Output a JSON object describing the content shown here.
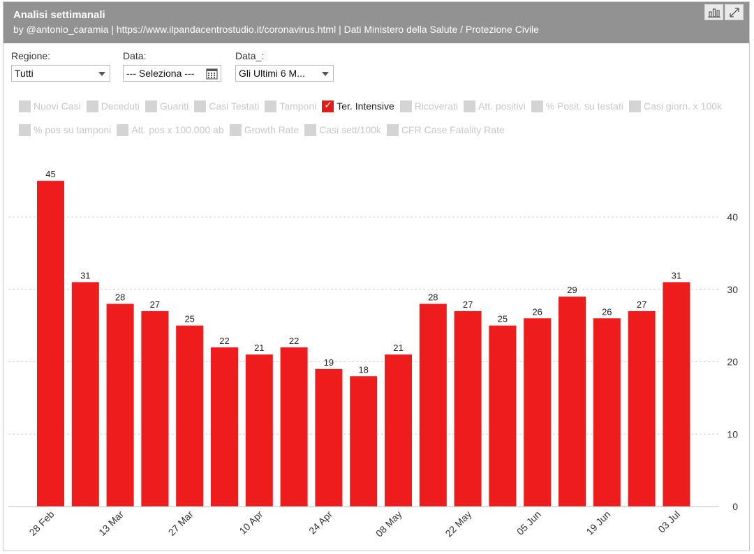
{
  "header": {
    "title": "Analisi settimanali",
    "subtitle": "by @antonio_caramia | https://www.ilpandacentrostudio.it/coronavirus.html | Dati Ministero della Salute / Protezione Civile"
  },
  "filters": {
    "regione": {
      "label": "Regione:",
      "value": "Tutti"
    },
    "data": {
      "label": "Data:",
      "value": "--- Seleziona ---"
    },
    "data2": {
      "label": "Data_:",
      "value": "Gli Ultimi 6 M..."
    }
  },
  "legend": [
    {
      "label": "Nuovi Casi",
      "checked": false
    },
    {
      "label": "Deceduti",
      "checked": false
    },
    {
      "label": "Guariti",
      "checked": false
    },
    {
      "label": "Casi Testati",
      "checked": false
    },
    {
      "label": "Tamponi",
      "checked": false
    },
    {
      "label": "Ter. Intensive",
      "checked": true
    },
    {
      "label": "Ricoverati",
      "checked": false
    },
    {
      "label": "Att. positivi",
      "checked": false
    },
    {
      "label": "% Posit. su testati",
      "checked": false
    },
    {
      "label": "Casi giorn. x 100k",
      "checked": false
    },
    {
      "label": "% pos su tamponi",
      "checked": false
    },
    {
      "label": "Att. pos x 100.000 ab",
      "checked": false
    },
    {
      "label": "Growth Rate",
      "checked": false
    },
    {
      "label": "Casi sett/100k",
      "checked": false
    },
    {
      "label": "CFR Case Fatality Rate",
      "checked": false
    }
  ],
  "colors": {
    "bar": "#ee1c1c",
    "header": "#929292",
    "checked": "#e31b1b"
  },
  "chart_data": {
    "type": "bar",
    "categories": [
      "28 Feb",
      "",
      "13 Mar",
      "",
      "27 Mar",
      "",
      "10 Apr",
      "",
      "24 Apr",
      "",
      "08 May",
      "",
      "22 May",
      "",
      "05 Jun",
      "",
      "19 Jun",
      "",
      "03 Jul"
    ],
    "values": [
      45,
      31,
      28,
      27,
      25,
      22,
      21,
      22,
      19,
      18,
      21,
      28,
      27,
      25,
      26,
      29,
      26,
      27,
      31
    ],
    "ylim": [
      0,
      48
    ],
    "yticks": [
      0,
      10,
      20,
      30,
      40
    ],
    "y_axis_side": "right",
    "grid": true,
    "data_labels": true
  }
}
